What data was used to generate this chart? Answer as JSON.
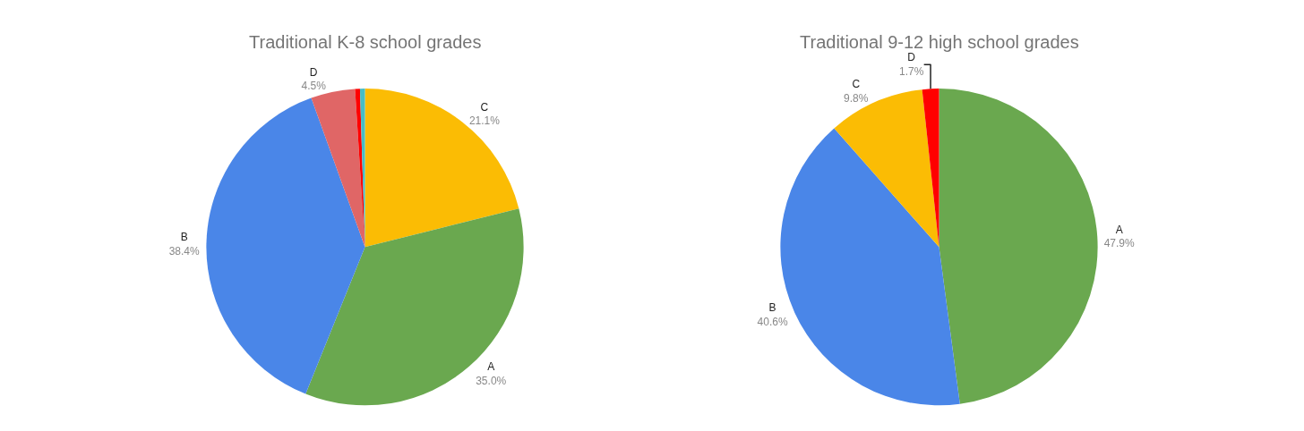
{
  "chart_data": [
    {
      "type": "pie",
      "title": "Traditional K-8 school grades",
      "categories": [
        "C",
        "A",
        "B",
        "D",
        null,
        null
      ],
      "values": [
        21.1,
        35.0,
        38.4,
        4.5,
        0.5,
        0.5
      ],
      "value_labels": [
        "21.1%",
        "35.0%",
        "38.4%",
        "4.5%",
        null,
        null
      ],
      "colors": [
        "#fbbc04",
        "#6aa84f",
        "#4a86e8",
        "#e06666",
        "#ff0000",
        "#46bdc6"
      ]
    },
    {
      "type": "pie",
      "title": "Traditional 9-12 high school grades",
      "categories": [
        "A",
        "B",
        "C",
        "D"
      ],
      "values": [
        47.9,
        40.6,
        9.8,
        1.7
      ],
      "value_labels": [
        "47.9%",
        "40.6%",
        "9.8%",
        "1.7%"
      ],
      "colors": [
        "#6aa84f",
        "#4a86e8",
        "#fbbc04",
        "#ff0000"
      ]
    }
  ]
}
